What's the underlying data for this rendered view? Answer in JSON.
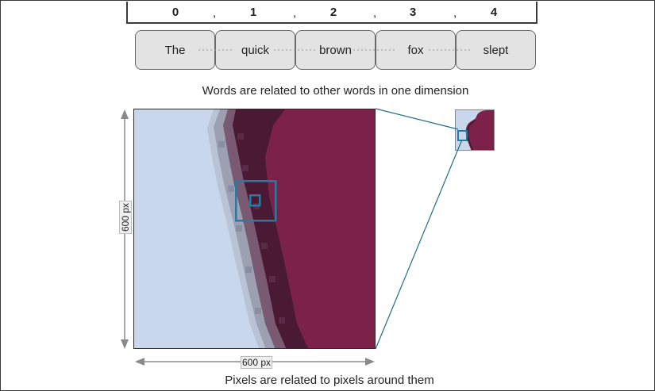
{
  "indices": [
    "0",
    "1",
    "2",
    "3",
    "4"
  ],
  "words": [
    "The",
    "quick",
    "brown",
    "fox",
    "slept"
  ],
  "caption_top": "Words are related to other words in one dimension",
  "caption_bottom": "Pixels are related to pixels around them",
  "dim_vertical": "600 px",
  "dim_horizontal": "600 px",
  "colors": {
    "light_blue": "#c8d7ec",
    "dark_maroon": "#4a1a35",
    "maroon": "#7c2149",
    "highlight": "#2a7aa0",
    "arrow": "#8a8a8a"
  }
}
